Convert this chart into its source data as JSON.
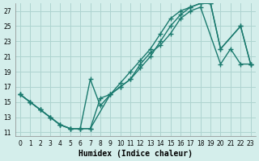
{
  "xlabel": "Humidex (Indice chaleur)",
  "background_color": "#d4eeeb",
  "grid_color": "#aed4d0",
  "line_color": "#1a7a6e",
  "marker": "+",
  "markersize": 4,
  "linewidth": 1.0,
  "xlim": [
    -0.5,
    23.5
  ],
  "ylim": [
    10.5,
    28.0
  ],
  "xticks": [
    0,
    1,
    2,
    3,
    4,
    5,
    6,
    7,
    8,
    9,
    10,
    11,
    12,
    13,
    14,
    15,
    16,
    17,
    18,
    19,
    20,
    21,
    22,
    23
  ],
  "yticks": [
    11,
    13,
    15,
    17,
    19,
    21,
    23,
    25,
    27
  ],
  "tick_fontsize": 5.5,
  "xlabel_fontsize": 7,
  "line1_x": [
    0,
    1,
    2,
    3,
    4,
    5,
    6,
    7,
    8,
    9,
    10,
    11,
    12,
    13,
    14,
    15,
    16,
    17,
    18,
    20,
    21,
    22,
    23
  ],
  "line1_y": [
    16,
    15,
    14,
    13,
    12,
    11.5,
    11.5,
    11.5,
    15.5,
    16,
    17,
    18,
    20,
    21.5,
    22.5,
    24,
    26,
    27,
    27.5,
    20,
    22,
    20,
    20
  ],
  "line2_x": [
    0,
    1,
    2,
    3,
    4,
    5,
    6,
    7,
    8,
    9,
    10,
    11,
    12,
    13,
    14,
    15,
    16,
    17,
    18,
    19,
    20,
    22,
    23
  ],
  "line2_y": [
    16,
    15,
    14,
    13,
    12,
    11.5,
    11.5,
    18,
    14.5,
    16,
    17.5,
    19,
    20.5,
    22,
    24,
    26,
    27,
    27.5,
    28,
    28,
    22,
    25,
    20
  ],
  "line3_x": [
    0,
    1,
    2,
    3,
    4,
    5,
    6,
    7,
    9,
    10,
    11,
    12,
    13,
    14,
    15,
    16,
    17,
    18,
    19,
    20,
    22,
    23
  ],
  "line3_y": [
    16,
    15,
    14,
    13,
    12,
    11.5,
    11.5,
    11.5,
    16,
    17,
    18,
    19.5,
    21,
    23,
    25,
    26.5,
    27.5,
    28,
    28,
    22,
    25,
    20
  ]
}
